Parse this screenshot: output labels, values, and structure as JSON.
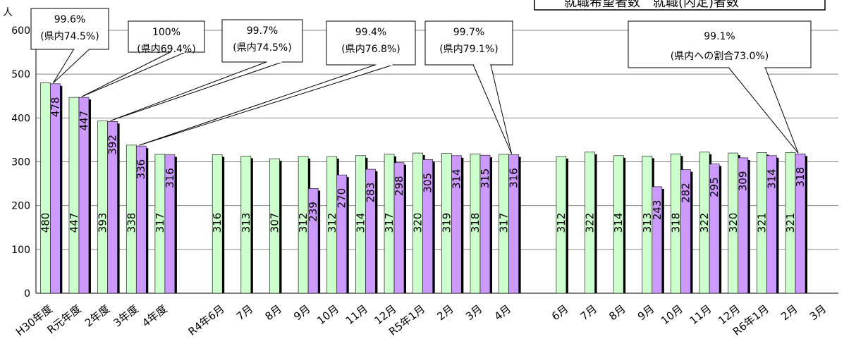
{
  "chart_data": {
    "type": "bar",
    "unit_label": "人",
    "ylim": [
      0,
      600
    ],
    "yticks": [
      0,
      100,
      200,
      300,
      400,
      500,
      600
    ],
    "grid": true,
    "legend_text": "就職希望者数　就職(内定)者数",
    "categories": [
      "H30年度",
      "R元年度",
      "2年度",
      "3年度",
      "4年度",
      "",
      "R4年6月",
      "7月",
      "8月",
      "9月",
      "10月",
      "11月",
      "12月",
      "R5年1月",
      "2月",
      "3月",
      "4月",
      "",
      "6月",
      "7月",
      "8月",
      "9月",
      "10月",
      "11月",
      "12月",
      "R6年1月",
      "2月",
      "3月"
    ],
    "series": [
      {
        "color": "#ccffcc",
        "values": [
          480,
          447,
          393,
          338,
          317,
          null,
          316,
          313,
          307,
          312,
          312,
          314,
          317,
          320,
          319,
          318,
          317,
          null,
          312,
          322,
          314,
          313,
          318,
          322,
          320,
          321,
          321,
          null
        ],
        "labels": [
          "480",
          "447",
          "393",
          "338",
          "317",
          "",
          "316",
          "313",
          "307",
          "312",
          "312",
          "314",
          "317",
          "320",
          "319",
          "318",
          "317",
          "",
          "312",
          "322",
          "314",
          "313",
          "318",
          "322",
          "320",
          "321",
          "321",
          ""
        ]
      },
      {
        "color": "#cc99ff",
        "values": [
          478,
          447,
          392,
          336,
          316,
          null,
          null,
          null,
          null,
          239,
          270,
          283,
          298,
          305,
          314,
          315,
          316,
          null,
          null,
          null,
          null,
          243,
          282,
          295,
          309,
          314,
          318,
          null
        ],
        "labels": [
          "478",
          "447",
          "392",
          "336",
          "316",
          "",
          "",
          "",
          "",
          "239",
          "270",
          "283",
          "298",
          "305",
          "314",
          "315",
          "316",
          "",
          "",
          "",
          "",
          "243",
          "282",
          "295",
          "309",
          "314",
          "318",
          ""
        ]
      }
    ],
    "annotations": [
      {
        "line1": "99.6%",
        "line2": "(県内74.5%)"
      },
      {
        "line1": "100%",
        "line2": "(県内69.4%)"
      },
      {
        "line1": "99.7%",
        "line2": "(県内74.5%)"
      },
      {
        "line1": "99.4%",
        "line2": "(県内76.8%)"
      },
      {
        "line1": "99.7%",
        "line2": "(県内79.1%)"
      },
      {
        "line1": "99.1%",
        "line2": "(県内への割合73.0%)"
      }
    ]
  }
}
